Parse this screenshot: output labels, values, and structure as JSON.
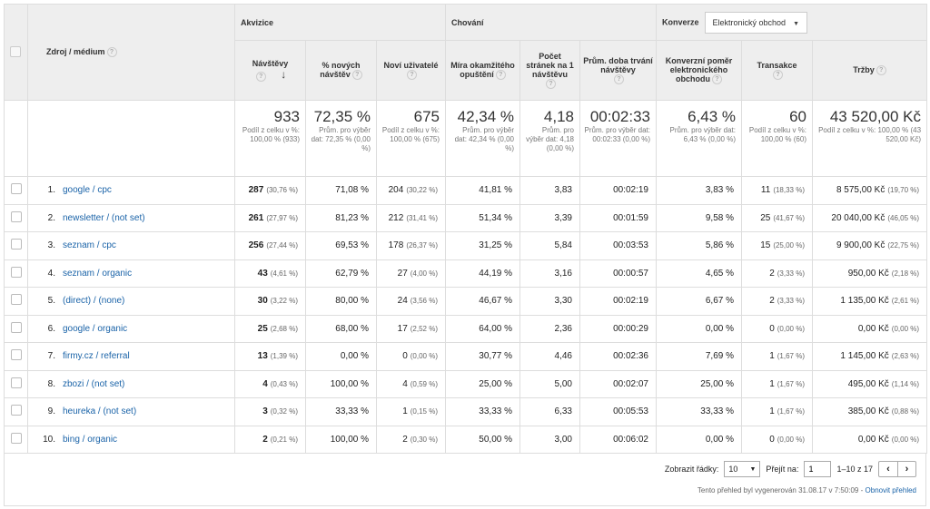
{
  "groups": {
    "source_header": "Zdroj / médium",
    "acquisition": "Akvizice",
    "behavior": "Chování",
    "conversions_label": "Konverze",
    "conversions_dropdown": "Elektronický obchod"
  },
  "columns": {
    "sessions": "Návštěvy",
    "new_sessions_pct": "% nových návštěv",
    "new_users": "Noví uživatelé",
    "bounce_rate": "Míra okamžitého opuštění",
    "pages_per_session": "Počet stránek na 1 návštěvu",
    "avg_duration": "Prům. doba trvání návštěvy",
    "conversion_rate": "Konverzní poměr elektronického obchodu",
    "transactions": "Transakce",
    "revenue": "Tržby"
  },
  "totals": {
    "sessions": "933",
    "sessions_sub": "Podíl z celku v %: 100,00 % (933)",
    "new_sessions_pct": "72,35 %",
    "new_sessions_pct_sub": "Prům. pro výběr dat: 72,35 % (0,00 %)",
    "new_users": "675",
    "new_users_sub": "Podíl z celku v %: 100,00 % (675)",
    "bounce_rate": "42,34 %",
    "bounce_rate_sub": "Prům. pro výběr dat: 42,34 % (0,00 %)",
    "pages_per_session": "4,18",
    "pages_per_session_sub": "Prům. pro výběr dat: 4,18 (0,00 %)",
    "avg_duration": "00:02:33",
    "avg_duration_sub": "Prům. pro výběr dat: 00:02:33 (0,00 %)",
    "conversion_rate": "6,43 %",
    "conversion_rate_sub": "Prům. pro výběr dat: 6,43 % (0,00 %)",
    "transactions": "60",
    "transactions_sub": "Podíl z celku v %: 100,00 % (60)",
    "revenue": "43 520,00 Kč",
    "revenue_sub": "Podíl z celku v %: 100,00 % (43 520,00 Kč)"
  },
  "rows": [
    {
      "n": "1.",
      "source": "google / cpc",
      "sessions": "287",
      "sessions_pct": "(30,76 %)",
      "new_pct": "71,08 %",
      "new_users": "204",
      "new_users_pct": "(30,22 %)",
      "bounce": "41,81 %",
      "pages": "3,83",
      "duration": "00:02:19",
      "conv": "3,83 %",
      "trans": "11",
      "trans_pct": "(18,33 %)",
      "revenue": "8 575,00 Kč",
      "revenue_pct": "(19,70 %)"
    },
    {
      "n": "2.",
      "source": "newsletter / (not set)",
      "sessions": "261",
      "sessions_pct": "(27,97 %)",
      "new_pct": "81,23 %",
      "new_users": "212",
      "new_users_pct": "(31,41 %)",
      "bounce": "51,34 %",
      "pages": "3,39",
      "duration": "00:01:59",
      "conv": "9,58 %",
      "trans": "25",
      "trans_pct": "(41,67 %)",
      "revenue": "20 040,00 Kč",
      "revenue_pct": "(46,05 %)"
    },
    {
      "n": "3.",
      "source": "seznam / cpc",
      "sessions": "256",
      "sessions_pct": "(27,44 %)",
      "new_pct": "69,53 %",
      "new_users": "178",
      "new_users_pct": "(26,37 %)",
      "bounce": "31,25 %",
      "pages": "5,84",
      "duration": "00:03:53",
      "conv": "5,86 %",
      "trans": "15",
      "trans_pct": "(25,00 %)",
      "revenue": "9 900,00 Kč",
      "revenue_pct": "(22,75 %)"
    },
    {
      "n": "4.",
      "source": "seznam / organic",
      "sessions": "43",
      "sessions_pct": "(4,61 %)",
      "new_pct": "62,79 %",
      "new_users": "27",
      "new_users_pct": "(4,00 %)",
      "bounce": "44,19 %",
      "pages": "3,16",
      "duration": "00:00:57",
      "conv": "4,65 %",
      "trans": "2",
      "trans_pct": "(3,33 %)",
      "revenue": "950,00 Kč",
      "revenue_pct": "(2,18 %)"
    },
    {
      "n": "5.",
      "source": "(direct) / (none)",
      "sessions": "30",
      "sessions_pct": "(3,22 %)",
      "new_pct": "80,00 %",
      "new_users": "24",
      "new_users_pct": "(3,56 %)",
      "bounce": "46,67 %",
      "pages": "3,30",
      "duration": "00:02:19",
      "conv": "6,67 %",
      "trans": "2",
      "trans_pct": "(3,33 %)",
      "revenue": "1 135,00 Kč",
      "revenue_pct": "(2,61 %)"
    },
    {
      "n": "6.",
      "source": "google / organic",
      "sessions": "25",
      "sessions_pct": "(2,68 %)",
      "new_pct": "68,00 %",
      "new_users": "17",
      "new_users_pct": "(2,52 %)",
      "bounce": "64,00 %",
      "pages": "2,36",
      "duration": "00:00:29",
      "conv": "0,00 %",
      "trans": "0",
      "trans_pct": "(0,00 %)",
      "revenue": "0,00 Kč",
      "revenue_pct": "(0,00 %)"
    },
    {
      "n": "7.",
      "source": "firmy.cz / referral",
      "sessions": "13",
      "sessions_pct": "(1,39 %)",
      "new_pct": "0,00 %",
      "new_users": "0",
      "new_users_pct": "(0,00 %)",
      "bounce": "30,77 %",
      "pages": "4,46",
      "duration": "00:02:36",
      "conv": "7,69 %",
      "trans": "1",
      "trans_pct": "(1,67 %)",
      "revenue": "1 145,00 Kč",
      "revenue_pct": "(2,63 %)"
    },
    {
      "n": "8.",
      "source": "zbozi / (not set)",
      "sessions": "4",
      "sessions_pct": "(0,43 %)",
      "new_pct": "100,00 %",
      "new_users": "4",
      "new_users_pct": "(0,59 %)",
      "bounce": "25,00 %",
      "pages": "5,00",
      "duration": "00:02:07",
      "conv": "25,00 %",
      "trans": "1",
      "trans_pct": "(1,67 %)",
      "revenue": "495,00 Kč",
      "revenue_pct": "(1,14 %)"
    },
    {
      "n": "9.",
      "source": "heureka / (not set)",
      "sessions": "3",
      "sessions_pct": "(0,32 %)",
      "new_pct": "33,33 %",
      "new_users": "1",
      "new_users_pct": "(0,15 %)",
      "bounce": "33,33 %",
      "pages": "6,33",
      "duration": "00:05:53",
      "conv": "33,33 %",
      "trans": "1",
      "trans_pct": "(1,67 %)",
      "revenue": "385,00 Kč",
      "revenue_pct": "(0,88 %)"
    },
    {
      "n": "10.",
      "source": "bing / organic",
      "sessions": "2",
      "sessions_pct": "(0,21 %)",
      "new_pct": "100,00 %",
      "new_users": "2",
      "new_users_pct": "(0,30 %)",
      "bounce": "50,00 %",
      "pages": "3,00",
      "duration": "00:06:02",
      "conv": "0,00 %",
      "trans": "0",
      "trans_pct": "(0,00 %)",
      "revenue": "0,00 Kč",
      "revenue_pct": "(0,00 %)"
    }
  ],
  "footer": {
    "rows_label": "Zobrazit řádky:",
    "rows_value": "10",
    "goto_label": "Přejít na:",
    "goto_value": "1",
    "range": "1–10 z 17",
    "prev": "‹",
    "next": "›",
    "generated": "Tento přehled byl vygenerován 31.08.17 v 7:50:09 -",
    "refresh": "Obnovit přehled"
  },
  "icons": {
    "help": "help-icon",
    "sort": "sort-down-arrow-icon",
    "dropdown": "dropdown-caret-icon"
  },
  "colors": {
    "link": "#1a63a8",
    "header_bg": "#eeeeee",
    "border": "#dddddd"
  }
}
